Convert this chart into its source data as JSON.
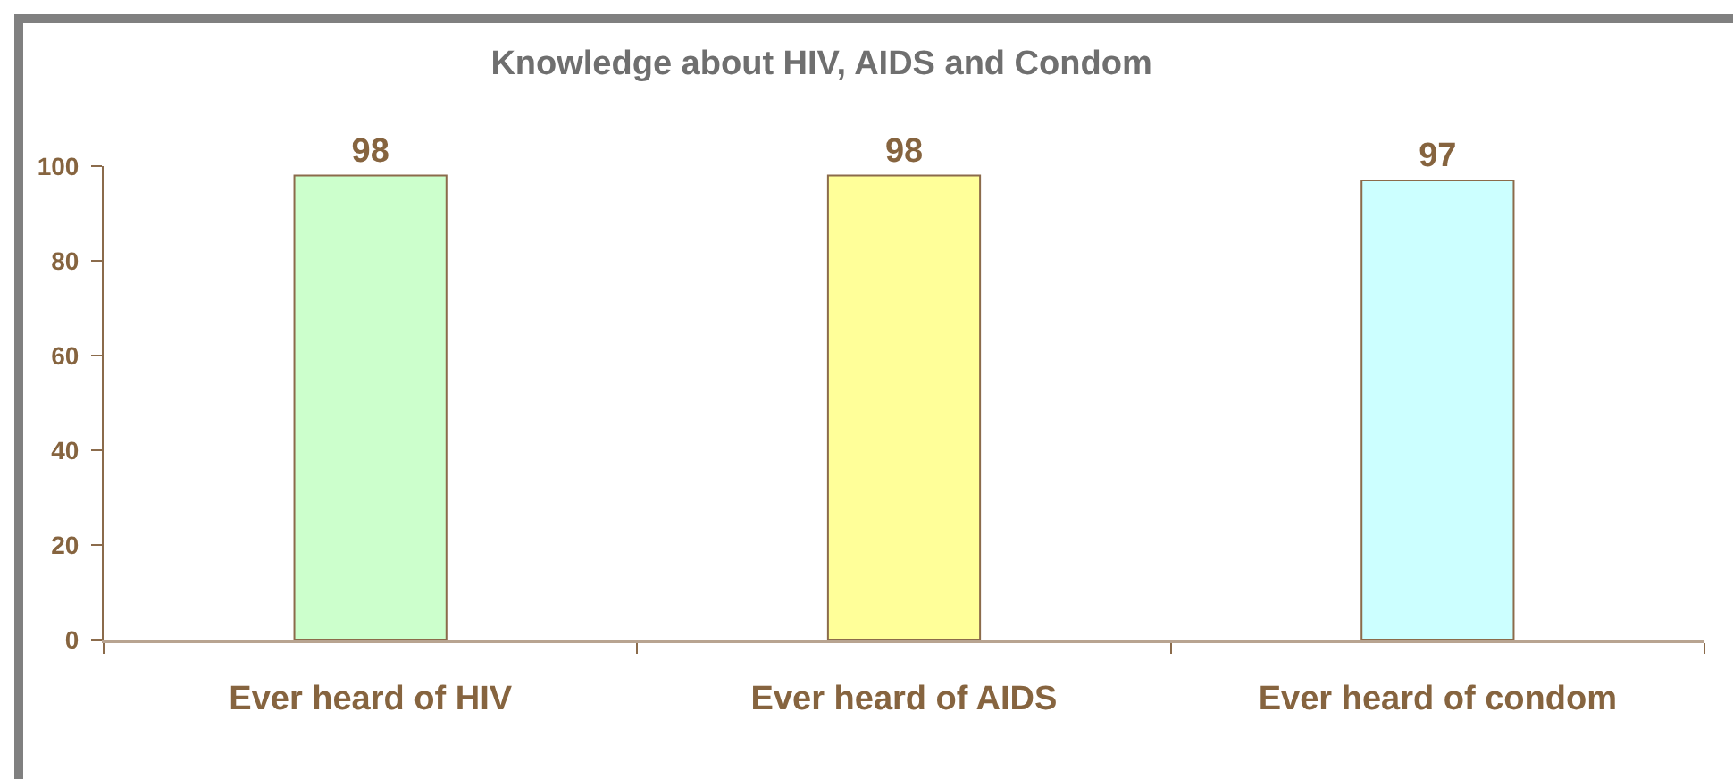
{
  "chart_data": {
    "type": "bar",
    "title": "Knowledge about HIV, AIDS and Condom",
    "categories": [
      "Ever heard of HIV",
      "Ever heard of AIDS",
      "Ever heard of condom"
    ],
    "values": [
      98,
      98,
      97
    ],
    "colors": [
      "#ccffcc",
      "#ffff99",
      "#ccffff"
    ],
    "ylim": [
      0,
      100
    ],
    "yticks": [
      0,
      20,
      40,
      60,
      80,
      100
    ],
    "data_labels": true
  }
}
